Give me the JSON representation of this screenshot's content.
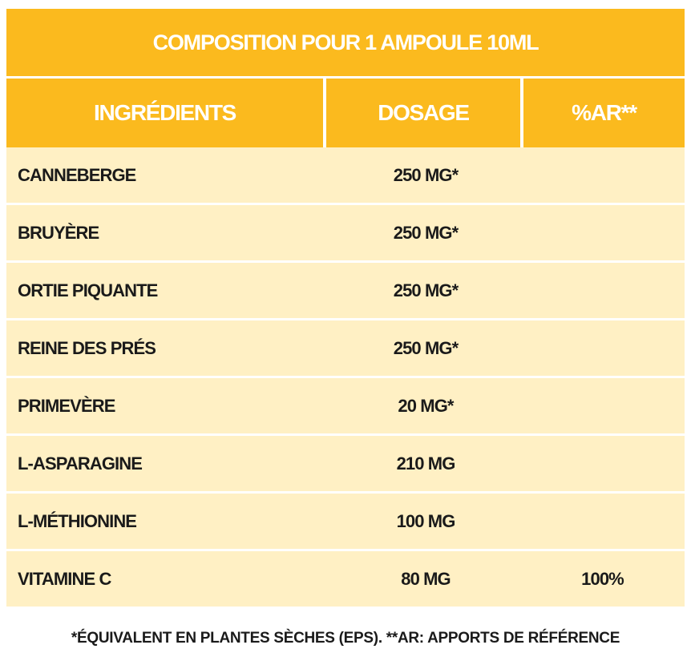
{
  "title": "COMPOSITION POUR 1 AMPOULE 10ML",
  "headers": {
    "ingredients": "INGRÉDIENTS",
    "dosage": "DOSAGE",
    "ar": "%AR**"
  },
  "rows": [
    {
      "ingredient": "CANNEBERGE",
      "dosage": "250 MG*",
      "ar": ""
    },
    {
      "ingredient": "BRUYÈRE",
      "dosage": "250 MG*",
      "ar": ""
    },
    {
      "ingredient": "ORTIE PIQUANTE",
      "dosage": "250 MG*",
      "ar": ""
    },
    {
      "ingredient": "REINE DES PRÉS",
      "dosage": "250 MG*",
      "ar": ""
    },
    {
      "ingredient": "PRIMEVÈRE",
      "dosage": "20 MG*",
      "ar": ""
    },
    {
      "ingredient": "L-ASPARAGINE",
      "dosage": "210 MG",
      "ar": ""
    },
    {
      "ingredient": "L-MÉTHIONINE",
      "dosage": "100 MG",
      "ar": ""
    },
    {
      "ingredient": "VITAMINE C",
      "dosage": "80 MG",
      "ar": "100%"
    }
  ],
  "footnote": "*ÉQUIVALENT EN PLANTES SÈCHES (EPS). **AR: APPORTS DE RÉFÉRENCE",
  "colors": {
    "header_bg": "#fbba1e",
    "row_bg": "#fff0c4",
    "text": "#1a1a1a",
    "header_text": "#ffffff"
  }
}
